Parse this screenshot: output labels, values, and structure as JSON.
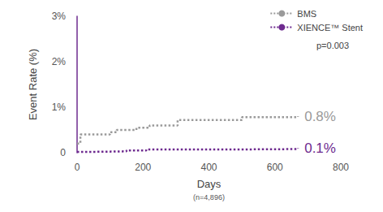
{
  "chart_data": {
    "type": "line",
    "x_label": "Days",
    "y_label": "Event Rate (%)",
    "subtitle": "(n=4,896)",
    "annotation": "p=0.003",
    "xlim": [
      0,
      800
    ],
    "xticks": [
      0,
      200,
      400,
      600,
      800
    ],
    "ylim": [
      0,
      3
    ],
    "yticks": [
      0,
      {
        "value": 1,
        "label": "1%"
      },
      {
        "value": 2,
        "label": "2%"
      },
      {
        "value": 3,
        "label": "3%"
      }
    ],
    "grid": false,
    "legend": "upper right",
    "line_style": "dotted",
    "marker": "none",
    "series": [
      {
        "name": "BMS",
        "color": "#9a9a9a",
        "end_label": "0.8%",
        "x": [
          0,
          10,
          100,
          120,
          180,
          220,
          300,
          305,
          490,
          500,
          670
        ],
        "values": [
          0.2,
          0.4,
          0.45,
          0.5,
          0.55,
          0.6,
          0.6,
          0.72,
          0.72,
          0.78,
          0.8
        ]
      },
      {
        "name": "XIENCE™ Stent",
        "color": "#6e2b8f",
        "end_label": "0.1%",
        "x": [
          0,
          60,
          150,
          210,
          450,
          670
        ],
        "values": [
          0.02,
          0.03,
          0.05,
          0.07,
          0.08,
          0.1
        ]
      }
    ]
  }
}
